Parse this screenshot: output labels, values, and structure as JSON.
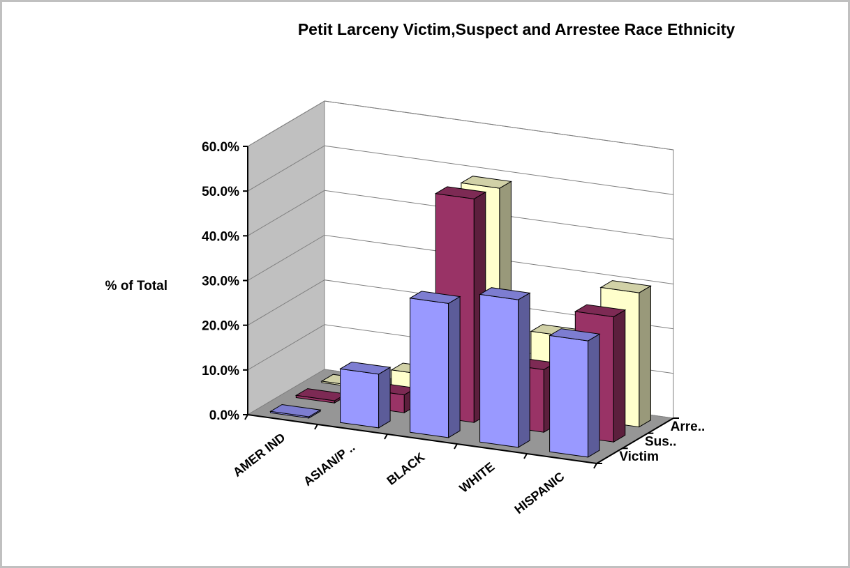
{
  "chart_data": {
    "type": "bar",
    "title": "Petit Larceny Victim,Suspect and Arrestee Race Ethnicity",
    "ylabel": "% of Total",
    "xlabel": "",
    "ylim": [
      0,
      0.6
    ],
    "y_ticks": [
      "0.0%",
      "10.0%",
      "20.0%",
      "30.0%",
      "40.0%",
      "50.0%",
      "60.0%"
    ],
    "categories": [
      "AMER IND",
      "ASIAN/P ..",
      "BLACK",
      "WHITE",
      "HISPANIC"
    ],
    "series": [
      {
        "name": "Victim",
        "values": [
          0.003,
          0.12,
          0.3,
          0.33,
          0.26
        ]
      },
      {
        "name": "Sus..",
        "values": [
          0.005,
          0.04,
          0.5,
          0.14,
          0.28
        ]
      },
      {
        "name": "Arre..",
        "values": [
          0.003,
          0.05,
          0.49,
          0.18,
          0.3
        ]
      }
    ],
    "colors": {
      "Victim": "#9999ff",
      "Sus..": "#993366",
      "Arre..": "#ffffcc",
      "back_wall": "#ffffff",
      "side_wall": "#c0c0c0",
      "floor": "#969696"
    },
    "grid": true,
    "legend": "depth axis labels (right)"
  }
}
